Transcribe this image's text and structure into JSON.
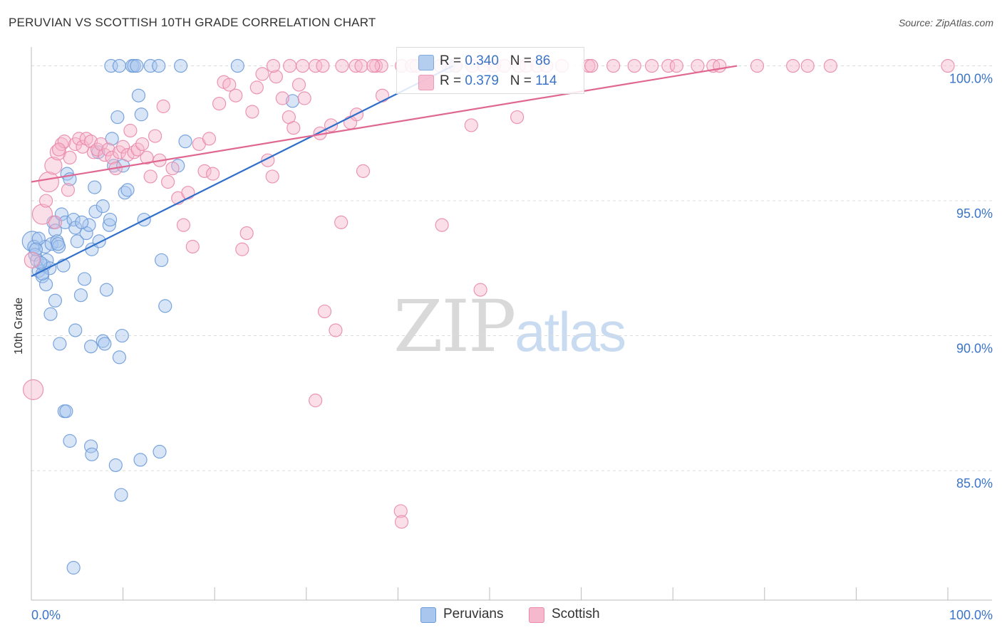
{
  "title": "PERUVIAN VS SCOTTISH 10TH GRADE CORRELATION CHART",
  "source": "Source: ZipAtlas.com",
  "watermark": {
    "zip": "ZIP",
    "atlas": "atlas"
  },
  "legend": {
    "rows": [
      {
        "r_label": "R = ",
        "r_value": "0.340",
        "n_label": "N = ",
        "n_value": "86",
        "color": "#a8c6ee",
        "stroke": "#6d9bd9"
      },
      {
        "r_label": "R = ",
        "r_value": "0.379",
        "n_label": "N = ",
        "n_value": "114",
        "color": "#f6b8cd",
        "stroke": "#e98aac"
      }
    ]
  },
  "bottom_legend": [
    {
      "label": "Peruvians",
      "color": "#a8c6ee",
      "stroke": "#6d9bd9"
    },
    {
      "label": "Scottish",
      "color": "#f6b8cd",
      "stroke": "#e98aac"
    }
  ],
  "chart_data": {
    "type": "scatter",
    "title": "PERUVIAN VS SCOTTISH 10TH GRADE CORRELATION CHART",
    "xlabel": "",
    "ylabel": "10th Grade",
    "xlim": [
      0,
      100
    ],
    "ylim": [
      80.2,
      100.7
    ],
    "x_tick_labels": [
      {
        "value": 0,
        "label": "0.0%"
      },
      {
        "value": 100,
        "label": "100.0%"
      }
    ],
    "y_tick_labels": [
      {
        "value": 100,
        "label": "100.0%"
      },
      {
        "value": 95,
        "label": "95.0%"
      },
      {
        "value": 90,
        "label": "90.0%"
      },
      {
        "value": 85,
        "label": "85.0%"
      }
    ],
    "grid": true,
    "legend_position": "bottom",
    "series": [
      {
        "name": "Peruvians",
        "color": "#a8c6ee",
        "stroke": "#6d9bd9",
        "line_color": "#2f6fcc",
        "trend": {
          "x": [
            0,
            46
          ],
          "y": [
            92.2,
            100.0
          ]
        },
        "points": [
          [
            0.1,
            93.5,
            14
          ],
          [
            0.3,
            93.3,
            9
          ],
          [
            0.4,
            93.0,
            9
          ],
          [
            0.6,
            92.8,
            9
          ],
          [
            0.8,
            92.4,
            9
          ],
          [
            1.2,
            92.2,
            9
          ],
          [
            1.4,
            92.6,
            9
          ],
          [
            1.6,
            91.9,
            9
          ],
          [
            1.7,
            92.8,
            9
          ],
          [
            2.0,
            92.5,
            9
          ],
          [
            1.5,
            93.3,
            9
          ],
          [
            2.2,
            93.4,
            9
          ],
          [
            2.4,
            94.2,
            9
          ],
          [
            2.6,
            93.9,
            9
          ],
          [
            2.8,
            93.5,
            9
          ],
          [
            3.0,
            93.3,
            9
          ],
          [
            3.3,
            94.5,
            9
          ],
          [
            3.5,
            92.6,
            9
          ],
          [
            3.7,
            94.2,
            9
          ],
          [
            3.9,
            96.0,
            9
          ],
          [
            4.2,
            95.8,
            9
          ],
          [
            4.6,
            94.3,
            9
          ],
          [
            4.8,
            94.0,
            9
          ],
          [
            5.0,
            93.5,
            9
          ],
          [
            5.4,
            91.5,
            9
          ],
          [
            5.8,
            92.1,
            9
          ],
          [
            6.0,
            93.8,
            9
          ],
          [
            6.3,
            94.1,
            9
          ],
          [
            6.6,
            93.2,
            9
          ],
          [
            7.0,
            94.6,
            9
          ],
          [
            7.4,
            93.5,
            9
          ],
          [
            7.8,
            94.8,
            9
          ],
          [
            8.2,
            91.7,
            9
          ],
          [
            8.5,
            94.1,
            9
          ],
          [
            8.6,
            94.3,
            9
          ],
          [
            9.0,
            96.3,
            9
          ],
          [
            9.4,
            98.1,
            9
          ],
          [
            8.8,
            97.3,
            9
          ],
          [
            6.9,
            95.5,
            9
          ],
          [
            7.3,
            96.8,
            9
          ],
          [
            10.0,
            96.3,
            9
          ],
          [
            10.2,
            95.3,
            9
          ],
          [
            10.5,
            95.4,
            9
          ],
          [
            11.7,
            98.9,
            9
          ],
          [
            12.0,
            98.2,
            9
          ],
          [
            12.3,
            94.3,
            9
          ],
          [
            14.2,
            92.8,
            9
          ],
          [
            14.6,
            91.1,
            9
          ],
          [
            16.0,
            96.3,
            9
          ],
          [
            16.8,
            97.2,
            9
          ],
          [
            2.1,
            90.8,
            9
          ],
          [
            2.6,
            91.3,
            9
          ],
          [
            3.1,
            89.7,
            9
          ],
          [
            4.8,
            90.2,
            9
          ],
          [
            6.5,
            89.6,
            9
          ],
          [
            7.8,
            89.8,
            9
          ],
          [
            8.0,
            89.7,
            9
          ],
          [
            9.6,
            89.2,
            9
          ],
          [
            9.9,
            90.0,
            9
          ],
          [
            3.6,
            87.2,
            9
          ],
          [
            3.8,
            87.2,
            9
          ],
          [
            4.2,
            86.1,
            9
          ],
          [
            6.5,
            85.9,
            9
          ],
          [
            6.6,
            85.6,
            9
          ],
          [
            9.2,
            85.2,
            9
          ],
          [
            11.9,
            85.4,
            9
          ],
          [
            14.0,
            85.7,
            9
          ],
          [
            9.8,
            84.1,
            9
          ],
          [
            4.6,
            81.4,
            9
          ],
          [
            8.7,
            100.0,
            9
          ],
          [
            9.6,
            100.0,
            9
          ],
          [
            11.0,
            100.0,
            9
          ],
          [
            11.2,
            100.0,
            9
          ],
          [
            11.5,
            100.0,
            9
          ],
          [
            13.0,
            100.0,
            9
          ],
          [
            13.9,
            100.0,
            9
          ],
          [
            16.3,
            100.0,
            9
          ],
          [
            22.5,
            100.0,
            9
          ],
          [
            28.5,
            98.7,
            9
          ],
          [
            46.3,
            100.0,
            9
          ],
          [
            45.5,
            100.0,
            9
          ],
          [
            1.2,
            92.3,
            9
          ],
          [
            0.8,
            93.6,
            9
          ],
          [
            1.0,
            92.7,
            9
          ],
          [
            0.5,
            93.2,
            9
          ],
          [
            2.9,
            93.4,
            9
          ],
          [
            5.5,
            94.2,
            9
          ]
        ]
      },
      {
        "name": "Scottish",
        "color": "#f6b8cd",
        "stroke": "#e98aac",
        "line_color": "#e06791",
        "trend": {
          "x": [
            0,
            77
          ],
          "y": [
            95.7,
            100.0
          ]
        },
        "points": [
          [
            0.1,
            92.8,
            11
          ],
          [
            0.2,
            88.0,
            14
          ],
          [
            1.2,
            94.5,
            14
          ],
          [
            1.9,
            95.7,
            14
          ],
          [
            2.4,
            96.3,
            12
          ],
          [
            2.9,
            96.8,
            11
          ],
          [
            3.3,
            97.1,
            9
          ],
          [
            3.6,
            97.2,
            9
          ],
          [
            4.2,
            96.6,
            9
          ],
          [
            4.8,
            97.1,
            9
          ],
          [
            5.2,
            97.3,
            9
          ],
          [
            5.6,
            97.0,
            9
          ],
          [
            6.0,
            97.3,
            9
          ],
          [
            6.5,
            97.2,
            9
          ],
          [
            6.8,
            96.8,
            9
          ],
          [
            7.2,
            96.9,
            9
          ],
          [
            7.6,
            97.1,
            9
          ],
          [
            8.0,
            96.7,
            9
          ],
          [
            8.4,
            96.9,
            9
          ],
          [
            8.8,
            96.6,
            9
          ],
          [
            9.2,
            96.2,
            9
          ],
          [
            9.6,
            96.8,
            9
          ],
          [
            10.0,
            97.0,
            9
          ],
          [
            10.5,
            96.7,
            9
          ],
          [
            10.8,
            97.6,
            9
          ],
          [
            11.2,
            96.8,
            9
          ],
          [
            11.6,
            96.9,
            9
          ],
          [
            12.1,
            97.1,
            9
          ],
          [
            12.6,
            96.6,
            9
          ],
          [
            13.0,
            95.9,
            9
          ],
          [
            13.5,
            97.4,
            9
          ],
          [
            14.0,
            96.5,
            9
          ],
          [
            14.4,
            98.5,
            9
          ],
          [
            14.9,
            95.7,
            9
          ],
          [
            15.4,
            96.2,
            9
          ],
          [
            16.0,
            95.1,
            9
          ],
          [
            16.6,
            94.1,
            9
          ],
          [
            17.1,
            95.3,
            9
          ],
          [
            17.6,
            93.3,
            9
          ],
          [
            18.3,
            97.1,
            9
          ],
          [
            18.9,
            96.1,
            9
          ],
          [
            19.4,
            97.3,
            9
          ],
          [
            19.8,
            96.0,
            9
          ],
          [
            20.5,
            98.6,
            9
          ],
          [
            21.0,
            99.4,
            9
          ],
          [
            21.6,
            99.3,
            9
          ],
          [
            22.3,
            98.9,
            9
          ],
          [
            23.0,
            93.2,
            9
          ],
          [
            23.5,
            93.8,
            9
          ],
          [
            24.1,
            98.3,
            9
          ],
          [
            24.6,
            99.2,
            9
          ],
          [
            25.2,
            99.7,
            9
          ],
          [
            25.8,
            96.5,
            9
          ],
          [
            26.3,
            95.9,
            9
          ],
          [
            26.7,
            99.6,
            9
          ],
          [
            27.4,
            98.8,
            9
          ],
          [
            28.1,
            98.1,
            9
          ],
          [
            28.6,
            97.7,
            9
          ],
          [
            29.2,
            99.3,
            9
          ],
          [
            29.8,
            98.8,
            9
          ],
          [
            31.0,
            87.6,
            9
          ],
          [
            31.5,
            97.5,
            9
          ],
          [
            32.0,
            90.9,
            9
          ],
          [
            32.7,
            97.8,
            9
          ],
          [
            33.2,
            90.2,
            9
          ],
          [
            33.8,
            94.2,
            9
          ],
          [
            34.8,
            97.9,
            9
          ],
          [
            35.5,
            98.2,
            9
          ],
          [
            36.2,
            96.1,
            9
          ],
          [
            38.3,
            98.9,
            9
          ],
          [
            40.3,
            83.5,
            9
          ],
          [
            40.4,
            83.1,
            9
          ],
          [
            44.8,
            94.1,
            9
          ],
          [
            48.0,
            97.8,
            9
          ],
          [
            49.0,
            91.7,
            9
          ],
          [
            53.0,
            98.1,
            9
          ],
          [
            2.6,
            94.2,
            9
          ],
          [
            4.0,
            95.4,
            9
          ],
          [
            1.6,
            95.0,
            9
          ],
          [
            3.0,
            96.9,
            9
          ],
          [
            26.4,
            100.0,
            9
          ],
          [
            28.2,
            100.0,
            9
          ],
          [
            29.6,
            100.0,
            9
          ],
          [
            31.0,
            100.0,
            9
          ],
          [
            31.8,
            100.0,
            9
          ],
          [
            33.9,
            100.0,
            9
          ],
          [
            35.4,
            100.0,
            9
          ],
          [
            36.0,
            100.0,
            9
          ],
          [
            37.6,
            100.0,
            9
          ],
          [
            38.2,
            100.0,
            9
          ],
          [
            40.4,
            100.0,
            9
          ],
          [
            41.5,
            100.0,
            9
          ],
          [
            42.0,
            100.0,
            9
          ],
          [
            44.6,
            100.0,
            9
          ],
          [
            46.3,
            100.0,
            9
          ],
          [
            48.1,
            100.0,
            9
          ],
          [
            49.4,
            100.0,
            9
          ],
          [
            50.5,
            100.0,
            9
          ],
          [
            51.6,
            100.0,
            9
          ],
          [
            53.2,
            100.0,
            9
          ],
          [
            54.0,
            100.0,
            9
          ],
          [
            55.2,
            100.0,
            9
          ],
          [
            57.9,
            100.0,
            9
          ],
          [
            60.8,
            100.0,
            9
          ],
          [
            61.1,
            100.0,
            9
          ],
          [
            63.5,
            100.0,
            9
          ],
          [
            65.8,
            100.0,
            9
          ],
          [
            67.7,
            100.0,
            9
          ],
          [
            69.5,
            100.0,
            9
          ],
          [
            70.4,
            100.0,
            9
          ],
          [
            72.7,
            100.0,
            9
          ],
          [
            74.4,
            100.0,
            9
          ],
          [
            75.1,
            100.0,
            9
          ],
          [
            79.2,
            100.0,
            9
          ],
          [
            83.1,
            100.0,
            9
          ],
          [
            84.7,
            100.0,
            9
          ],
          [
            87.2,
            100.0,
            9
          ],
          [
            100.0,
            100.0,
            9
          ],
          [
            37.3,
            100.0,
            9
          ],
          [
            56.2,
            100.0,
            9
          ]
        ]
      }
    ]
  }
}
